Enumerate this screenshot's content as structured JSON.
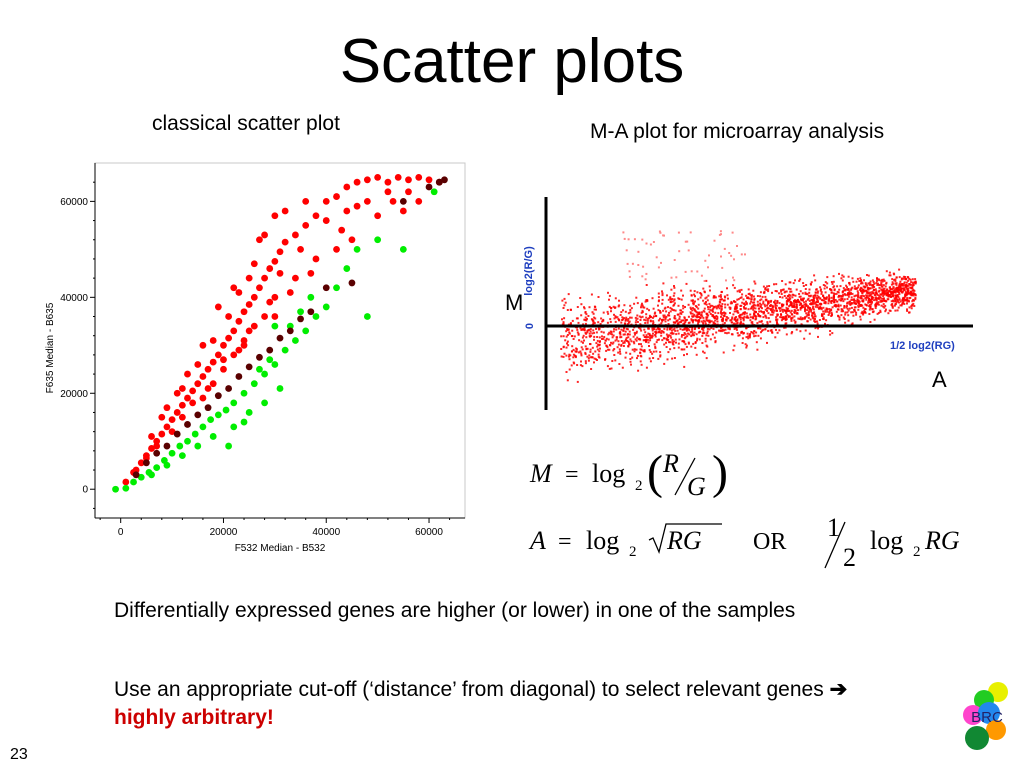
{
  "slide": {
    "title": "Scatter plots",
    "number": "23"
  },
  "left_panel": {
    "caption": "classical scatter plot"
  },
  "right_panel": {
    "caption": "M-A plot for microarray analysis",
    "m_label": "M",
    "a_label": "A",
    "y_axis_label": "log2(R/G)",
    "y_zero": "0",
    "x_axis_label": "1/2 log2(RG)"
  },
  "formulas": {
    "m_lhs": "M",
    "m_rhs_log": "log",
    "m_base": "2",
    "m_num": "R",
    "m_den": "G",
    "a_lhs": "A",
    "a_log": "log",
    "a_base": "2",
    "a_rad": "RG",
    "or": "OR",
    "half_num": "1",
    "half_den": "2",
    "half_log": "log",
    "half_base": "2",
    "half_arg": "RG"
  },
  "bullets": {
    "b1": "Differentially expressed genes are higher (or lower) in one of the samples",
    "b2_text": "Use an appropriate cut-off (‘distance’ from diagonal) to select relevant genes ",
    "b2_highlight": "highly arbitrary!"
  },
  "logo": {
    "text": "BRC"
  },
  "colors": {
    "red": "#ff0000",
    "green": "#00ee00",
    "dark": "#5a0000",
    "axis_blue": "#1f3fbf",
    "highlight": "#cc0000"
  },
  "chart_data": [
    {
      "type": "scatter",
      "title": "",
      "xlabel": "F532 Median - B532",
      "ylabel": "F635 Median - B635",
      "xlim": [
        -5000,
        67000
      ],
      "ylim": [
        -6000,
        68000
      ],
      "xticks": [
        0,
        20000,
        40000,
        60000
      ],
      "xtick_labels": [
        "0",
        "20000",
        "40000",
        "60000"
      ],
      "yticks": [
        0,
        20000,
        40000,
        60000
      ],
      "ytick_labels": [
        "0",
        "20000",
        "40000",
        "60000"
      ],
      "grid": false,
      "series": [
        {
          "color": "#ff0000",
          "points": [
            [
              1000,
              1500
            ],
            [
              2500,
              3500
            ],
            [
              4000,
              5500
            ],
            [
              5000,
              7000
            ],
            [
              6000,
              8500
            ],
            [
              7000,
              10000
            ],
            [
              8000,
              11500
            ],
            [
              9000,
              13000
            ],
            [
              10000,
              14500
            ],
            [
              11000,
              16000
            ],
            [
              12000,
              17500
            ],
            [
              13000,
              19000
            ],
            [
              14000,
              20500
            ],
            [
              15000,
              22000
            ],
            [
              16000,
              23500
            ],
            [
              17000,
              25000
            ],
            [
              18000,
              26500
            ],
            [
              19000,
              28000
            ],
            [
              20000,
              30000
            ],
            [
              21000,
              31500
            ],
            [
              22000,
              33000
            ],
            [
              23000,
              35000
            ],
            [
              24000,
              37000
            ],
            [
              25000,
              38500
            ],
            [
              26000,
              40000
            ],
            [
              27000,
              42000
            ],
            [
              28000,
              44000
            ],
            [
              29000,
              46000
            ],
            [
              30000,
              47500
            ],
            [
              31000,
              49500
            ],
            [
              32000,
              51500
            ],
            [
              34000,
              53000
            ],
            [
              36000,
              55000
            ],
            [
              38000,
              57000
            ],
            [
              40000,
              60000
            ],
            [
              42000,
              61000
            ],
            [
              44000,
              63000
            ],
            [
              46000,
              64000
            ],
            [
              48000,
              64500
            ],
            [
              50000,
              65000
            ],
            [
              52000,
              64000
            ],
            [
              54000,
              65000
            ],
            [
              56000,
              64500
            ],
            [
              58000,
              65000
            ],
            [
              60000,
              64500
            ],
            [
              62000,
              64000
            ],
            [
              9000,
              17000
            ],
            [
              12000,
              21000
            ],
            [
              15000,
              26000
            ],
            [
              18000,
              31000
            ],
            [
              21000,
              36000
            ],
            [
              23000,
              41000
            ],
            [
              25000,
              44000
            ],
            [
              26000,
              47000
            ],
            [
              27000,
              52000
            ],
            [
              30000,
              57000
            ],
            [
              22000,
              42000
            ],
            [
              19000,
              38000
            ],
            [
              16000,
              30000
            ],
            [
              13000,
              24000
            ],
            [
              11000,
              20000
            ],
            [
              8000,
              15000
            ],
            [
              6000,
              11000
            ],
            [
              28000,
              53000
            ],
            [
              32000,
              58000
            ],
            [
              36000,
              60000
            ],
            [
              40000,
              56000
            ],
            [
              44000,
              58000
            ],
            [
              48000,
              60000
            ],
            [
              52000,
              62000
            ],
            [
              45000,
              52000
            ],
            [
              42000,
              50000
            ],
            [
              38000,
              48000
            ],
            [
              34000,
              44000
            ],
            [
              30000,
              40000
            ],
            [
              26000,
              34000
            ],
            [
              24000,
              31000
            ],
            [
              20000,
              27000
            ],
            [
              17000,
              21000
            ],
            [
              14000,
              18000
            ],
            [
              16000,
              19000
            ],
            [
              18000,
              22000
            ],
            [
              20000,
              25000
            ],
            [
              22000,
              28000
            ],
            [
              24000,
              30000
            ],
            [
              28000,
              36000
            ],
            [
              30000,
              36000
            ],
            [
              33000,
              41000
            ],
            [
              46000,
              59000
            ],
            [
              50000,
              57000
            ],
            [
              53000,
              60000
            ],
            [
              43000,
              54000
            ],
            [
              37000,
              45000
            ],
            [
              35000,
              50000
            ],
            [
              31000,
              45000
            ],
            [
              29000,
              39000
            ],
            [
              25000,
              33000
            ],
            [
              23000,
              29000
            ],
            [
              10000,
              12000
            ],
            [
              12000,
              15000
            ],
            [
              7000,
              9000
            ],
            [
              5000,
              6500
            ],
            [
              3000,
              4000
            ],
            [
              58000,
              60000
            ],
            [
              56000,
              62000
            ],
            [
              55000,
              58000
            ]
          ]
        },
        {
          "color": "#00ee00",
          "points": [
            [
              -1000,
              0
            ],
            [
              1000,
              200
            ],
            [
              2500,
              1500
            ],
            [
              4000,
              2500
            ],
            [
              5500,
              3500
            ],
            [
              7000,
              4500
            ],
            [
              8500,
              6000
            ],
            [
              10000,
              7500
            ],
            [
              11500,
              9000
            ],
            [
              13000,
              10000
            ],
            [
              14500,
              11500
            ],
            [
              16000,
              13000
            ],
            [
              17500,
              14500
            ],
            [
              19000,
              15500
            ],
            [
              20500,
              16500
            ],
            [
              22000,
              18000
            ],
            [
              24000,
              20000
            ],
            [
              26000,
              22000
            ],
            [
              28000,
              24000
            ],
            [
              30000,
              26000
            ],
            [
              32000,
              29000
            ],
            [
              34000,
              31000
            ],
            [
              36000,
              33000
            ],
            [
              38000,
              36000
            ],
            [
              40000,
              38000
            ],
            [
              42000,
              42000
            ],
            [
              44000,
              46000
            ],
            [
              46000,
              50000
            ],
            [
              48000,
              36000
            ],
            [
              50000,
              52000
            ],
            [
              55000,
              50000
            ],
            [
              61000,
              62000
            ],
            [
              21000,
              9000
            ],
            [
              18000,
              11000
            ],
            [
              25000,
              16000
            ],
            [
              28000,
              18000
            ],
            [
              31000,
              21000
            ],
            [
              22000,
              13000
            ],
            [
              15000,
              9000
            ],
            [
              12000,
              7000
            ],
            [
              9000,
              5000
            ],
            [
              6000,
              3000
            ],
            [
              33000,
              34000
            ],
            [
              35000,
              37000
            ],
            [
              37000,
              40000
            ],
            [
              24000,
              14000
            ],
            [
              27000,
              25000
            ],
            [
              29000,
              27000
            ],
            [
              30000,
              34000
            ]
          ]
        },
        {
          "color": "#5a0000",
          "points": [
            [
              3000,
              3000
            ],
            [
              5000,
              5500
            ],
            [
              7000,
              7500
            ],
            [
              9000,
              9000
            ],
            [
              11000,
              11500
            ],
            [
              13000,
              13500
            ],
            [
              15000,
              15500
            ],
            [
              17000,
              17000
            ],
            [
              19000,
              19500
            ],
            [
              21000,
              21000
            ],
            [
              23000,
              23500
            ],
            [
              25000,
              25500
            ],
            [
              27000,
              27500
            ],
            [
              29000,
              29000
            ],
            [
              31000,
              31500
            ],
            [
              33000,
              33000
            ],
            [
              35000,
              35500
            ],
            [
              37000,
              37000
            ],
            [
              40000,
              42000
            ],
            [
              45000,
              43000
            ],
            [
              55000,
              60000
            ],
            [
              60000,
              63000
            ],
            [
              63000,
              64500
            ],
            [
              62000,
              64000
            ]
          ]
        }
      ]
    },
    {
      "type": "scatter",
      "title": "",
      "xlabel": "1/2 log2(RG)",
      "ylabel": "log2(R/G)",
      "yticks": [
        0
      ],
      "ytick_labels": [
        "0"
      ],
      "xticks": [],
      "grid": false,
      "series": [
        {
          "name": "",
          "color": "#ff0000",
          "description_values": "dense cloud of several thousand points, roughly centered on M = 0 across the A range"
        }
      ]
    }
  ]
}
